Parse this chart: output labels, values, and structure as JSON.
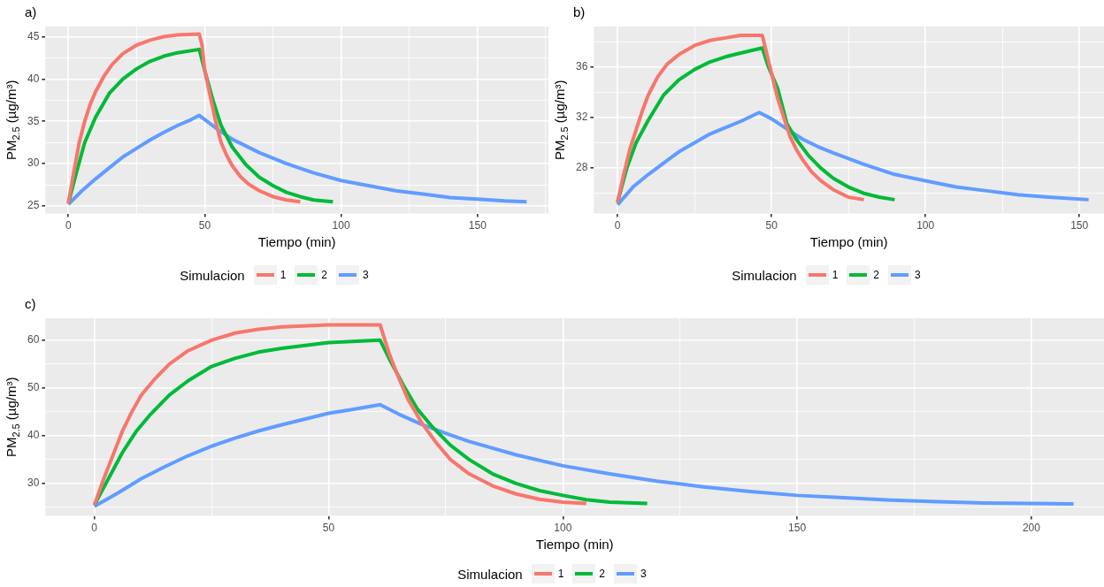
{
  "chart_data": [
    {
      "type": "line",
      "title": "a)",
      "xlabel": "Tiempo (min)",
      "ylabel": "PM$_{2.5}$ (µg/m³)",
      "legend_title": "Simulacion",
      "legend": "bottom",
      "grid": true,
      "marker": "none",
      "line_style": "solid",
      "xlim": [
        -8.4,
        176
      ],
      "ylim": [
        24.1,
        46.2
      ],
      "xticks": [
        0,
        {
          "value": 25,
          "label": null
        },
        50,
        {
          "value": 75,
          "label": null
        },
        100,
        {
          "value": 125,
          "label": null
        },
        150,
        {
          "value": 175,
          "label": null
        }
      ],
      "yticks": [
        25,
        {
          "value": 27.5,
          "label": null
        },
        30,
        {
          "value": 32.5,
          "label": null
        },
        35,
        {
          "value": 37.5,
          "label": null
        },
        40,
        {
          "value": 42.5,
          "label": null
        },
        45
      ],
      "series": [
        {
          "name": "1",
          "color": "#f8766d",
          "x": [
            0,
            2,
            4,
            6,
            8,
            10,
            13,
            16,
            20,
            25,
            30,
            35,
            40,
            48,
            49,
            50,
            52,
            54,
            56,
            58,
            60,
            63,
            66,
            70,
            75,
            80,
            85
          ],
          "values": [
            25.3,
            29,
            32.5,
            35,
            37,
            38.5,
            40.3,
            41.7,
            43,
            44,
            44.6,
            45,
            45.2,
            45.3,
            44,
            41,
            38,
            35,
            32.5,
            31,
            29.8,
            28.5,
            27.6,
            26.8,
            26.1,
            25.7,
            25.5
          ]
        },
        {
          "name": "2",
          "color": "#00ba38",
          "x": [
            0,
            3,
            6,
            10,
            15,
            20,
            25,
            30,
            35,
            40,
            48,
            50,
            53,
            56,
            60,
            65,
            70,
            75,
            80,
            85,
            90,
            97
          ],
          "values": [
            25.3,
            29,
            32.5,
            35.5,
            38.3,
            40,
            41.2,
            42.1,
            42.7,
            43.1,
            43.5,
            41,
            37.5,
            34.5,
            32,
            29.9,
            28.4,
            27.4,
            26.6,
            26.1,
            25.7,
            25.5
          ]
        },
        {
          "name": "3",
          "color": "#619cff",
          "x": [
            0,
            5,
            10,
            15,
            20,
            25,
            30,
            35,
            40,
            45,
            48,
            55,
            60,
            70,
            80,
            90,
            100,
            110,
            120,
            130,
            140,
            150,
            160,
            168
          ],
          "values": [
            25.2,
            26.8,
            28.2,
            29.5,
            30.8,
            31.8,
            32.8,
            33.7,
            34.5,
            35.2,
            35.7,
            34,
            32.9,
            31.3,
            30,
            28.9,
            28,
            27.4,
            26.8,
            26.4,
            26,
            25.8,
            25.6,
            25.5
          ]
        }
      ]
    },
    {
      "type": "line",
      "title": "b)",
      "xlabel": "Tiempo (min)",
      "ylabel": "PM$_{2.5}$ (µg/m³)",
      "legend_title": "Simulacion",
      "legend": "bottom",
      "grid": true,
      "marker": "none",
      "line_style": "solid",
      "xlim": [
        -7.7,
        158
      ],
      "ylim": [
        24.4,
        39.2
      ],
      "xticks": [
        0,
        {
          "value": 25,
          "label": null
        },
        50,
        {
          "value": 75,
          "label": null
        },
        100,
        {
          "value": 125,
          "label": null
        },
        150
      ],
      "yticks": [
        {
          "value": 26,
          "label": null
        },
        28,
        {
          "value": 30,
          "label": null
        },
        32,
        {
          "value": 34,
          "label": null
        },
        36,
        {
          "value": 38,
          "label": null
        }
      ],
      "series": [
        {
          "name": "1",
          "color": "#f8766d",
          "x": [
            0,
            2,
            4,
            6,
            8,
            10,
            13,
            16,
            20,
            25,
            30,
            35,
            40,
            47,
            48,
            50,
            52,
            54,
            56,
            58,
            60,
            63,
            66,
            70,
            75,
            80
          ],
          "values": [
            25.3,
            27.5,
            29.5,
            31,
            32.5,
            33.8,
            35.2,
            36.2,
            37,
            37.7,
            38.1,
            38.3,
            38.5,
            38.5,
            37.5,
            35.5,
            33.5,
            32,
            30.5,
            29.5,
            28.7,
            27.7,
            27,
            26.3,
            25.7,
            25.5
          ]
        },
        {
          "name": "2",
          "color": "#00ba38",
          "x": [
            0,
            3,
            6,
            10,
            15,
            20,
            25,
            30,
            35,
            40,
            47,
            49,
            52,
            55,
            58,
            62,
            66,
            70,
            75,
            80,
            85,
            90
          ],
          "values": [
            25.3,
            28,
            30,
            31.8,
            33.8,
            35,
            35.8,
            36.4,
            36.8,
            37.1,
            37.5,
            36,
            34.3,
            31.5,
            30.3,
            29,
            28,
            27.2,
            26.5,
            26,
            25.7,
            25.5
          ]
        },
        {
          "name": "3",
          "color": "#619cff",
          "x": [
            0,
            5,
            10,
            15,
            20,
            25,
            30,
            35,
            40,
            46,
            50,
            55,
            60,
            65,
            70,
            80,
            90,
            100,
            110,
            120,
            130,
            140,
            153
          ],
          "values": [
            25.1,
            26.5,
            27.5,
            28.4,
            29.3,
            30,
            30.7,
            31.2,
            31.7,
            32.4,
            31.9,
            31.1,
            30.3,
            29.7,
            29.2,
            28.3,
            27.5,
            27,
            26.5,
            26.2,
            25.9,
            25.7,
            25.5
          ]
        }
      ]
    },
    {
      "type": "line",
      "title": "c)",
      "xlabel": "Tiempo (min)",
      "ylabel": "PM$_{2.5}$ (µg/m³)",
      "legend_title": "Simulacion",
      "legend": "bottom",
      "grid": true,
      "marker": "none",
      "line_style": "solid",
      "xlim": [
        -10.45,
        215.5
      ],
      "ylim": [
        23.2,
        64.6
      ],
      "xticks": [
        0,
        {
          "value": 25,
          "label": null
        },
        50,
        {
          "value": 75,
          "label": null
        },
        100,
        {
          "value": 125,
          "label": null
        },
        150,
        {
          "value": 175,
          "label": null
        },
        200
      ],
      "yticks": [
        {
          "value": 25,
          "label": null
        },
        30,
        {
          "value": 35,
          "label": null
        },
        40,
        {
          "value": 45,
          "label": null
        },
        50,
        {
          "value": 55,
          "label": null
        },
        60
      ],
      "series": [
        {
          "name": "1",
          "color": "#f8766d",
          "x": [
            0,
            2,
            4,
            6,
            8,
            10,
            13,
            16,
            20,
            25,
            30,
            35,
            40,
            50,
            61,
            63,
            65,
            67,
            70,
            73,
            76,
            80,
            85,
            90,
            95,
            100,
            105
          ],
          "values": [
            25.5,
            31,
            36,
            41,
            45,
            48.5,
            52,
            55,
            57.8,
            60,
            61.5,
            62.3,
            62.8,
            63.2,
            63.2,
            57,
            52,
            47.5,
            42.5,
            38.5,
            35,
            32,
            29.5,
            27.8,
            26.7,
            26.1,
            25.8
          ]
        },
        {
          "name": "2",
          "color": "#00ba38",
          "x": [
            0,
            3,
            6,
            9,
            12,
            16,
            20,
            25,
            30,
            35,
            40,
            50,
            61,
            63,
            66,
            69,
            72,
            76,
            80,
            85,
            90,
            95,
            100,
            105,
            110,
            118
          ],
          "values": [
            25.5,
            31,
            36.5,
            41,
            44.5,
            48.5,
            51.5,
            54.5,
            56.2,
            57.5,
            58.3,
            59.5,
            60,
            56,
            50.5,
            45.5,
            42,
            38,
            35,
            32,
            30,
            28.5,
            27.5,
            26.6,
            26.1,
            25.8
          ]
        },
        {
          "name": "3",
          "color": "#619cff",
          "x": [
            0,
            5,
            10,
            15,
            20,
            25,
            30,
            35,
            40,
            45,
            50,
            55,
            61,
            65,
            70,
            75,
            80,
            90,
            100,
            110,
            120,
            130,
            140,
            150,
            160,
            170,
            180,
            190,
            200,
            209
          ],
          "values": [
            25.2,
            28,
            31,
            33.5,
            35.8,
            37.8,
            39.5,
            41,
            42.3,
            43.5,
            44.7,
            45.5,
            46.5,
            44.5,
            42.3,
            40.5,
            38.8,
            36,
            33.7,
            32,
            30.5,
            29.3,
            28.3,
            27.5,
            27,
            26.5,
            26.2,
            25.9,
            25.8,
            25.7
          ]
        }
      ]
    }
  ]
}
